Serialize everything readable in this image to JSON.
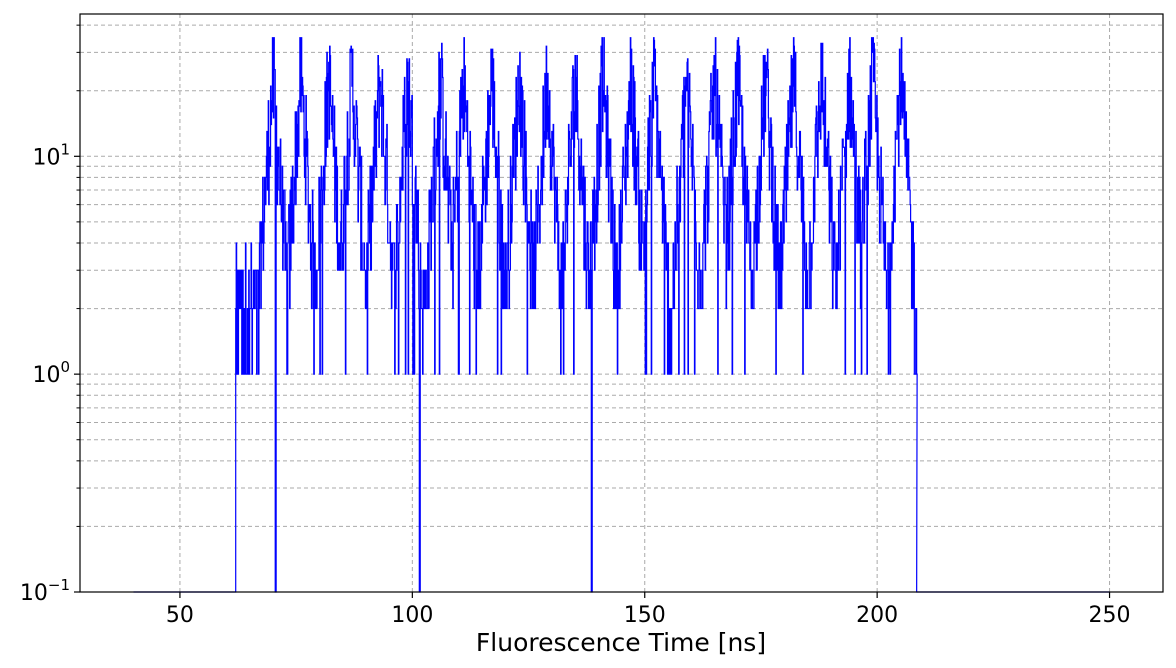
{
  "chart_data": {
    "type": "line",
    "title": "",
    "xlabel": "Fluorescence Time [ns]",
    "ylabel": "",
    "xlim": [
      28.5,
      261.5
    ],
    "ylim": [
      0.1,
      45
    ],
    "yscale": "log",
    "grid": true,
    "legend": "none",
    "x_ticks": [
      50,
      100,
      150,
      200,
      250
    ],
    "x_tick_labels": [
      "50",
      "100",
      "150",
      "200",
      "250"
    ],
    "y_ticks": [
      {
        "value": 0.1,
        "base": "10",
        "exp": "−1"
      },
      {
        "value": 1,
        "base": "10",
        "exp": "0"
      },
      {
        "value": 10,
        "base": "10",
        "exp": "1"
      }
    ],
    "series": [
      {
        "color": "#0000ff",
        "x_start": 40,
        "x_end": 250,
        "baseline": 0.1,
        "signal_start": 62,
        "signal_end": 208.5,
        "bin_width": 0.1,
        "pulse_period": 6.0,
        "pulse_peaks": [
          70,
          76,
          82,
          87,
          93,
          99,
          106,
          111,
          117,
          123,
          129,
          135,
          141,
          147,
          152,
          159,
          165,
          170,
          176,
          182,
          188,
          194,
          199,
          205
        ],
        "peak_max": 35,
        "valley_min": 2,
        "sample_dips": [
          70.5,
          101.5,
          138.5
        ]
      }
    ]
  }
}
